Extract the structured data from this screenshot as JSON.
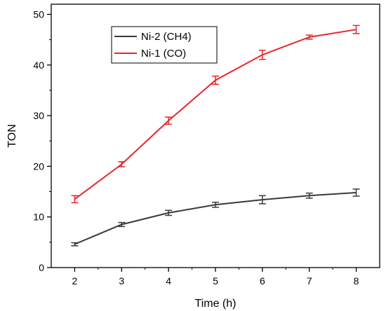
{
  "chart_data": {
    "type": "line",
    "title": "",
    "xlabel": "Time (h)",
    "ylabel": "TON",
    "xlim": [
      1.5,
      8.5
    ],
    "ylim": [
      0,
      52
    ],
    "x_ticks": [
      2,
      3,
      4,
      5,
      6,
      7,
      8
    ],
    "y_ticks": [
      0,
      10,
      20,
      30,
      40,
      50
    ],
    "grid": false,
    "legend_position": "top-left",
    "x": [
      2,
      3,
      4,
      5,
      6,
      7,
      8
    ],
    "series": [
      {
        "name": "Ni-2 (CH4)",
        "color": "#3a3a3a",
        "values": [
          4.6,
          8.5,
          10.8,
          12.4,
          13.4,
          14.2,
          14.8
        ],
        "errors": [
          0.3,
          0.4,
          0.5,
          0.5,
          0.8,
          0.5,
          0.7
        ]
      },
      {
        "name": "Ni-1 (CO)",
        "color": "#e8262b",
        "values": [
          13.5,
          20.4,
          29.0,
          37.0,
          42.0,
          45.5,
          47.0
        ],
        "errors": [
          0.7,
          0.5,
          0.7,
          0.8,
          0.9,
          0.4,
          0.8
        ]
      }
    ]
  }
}
